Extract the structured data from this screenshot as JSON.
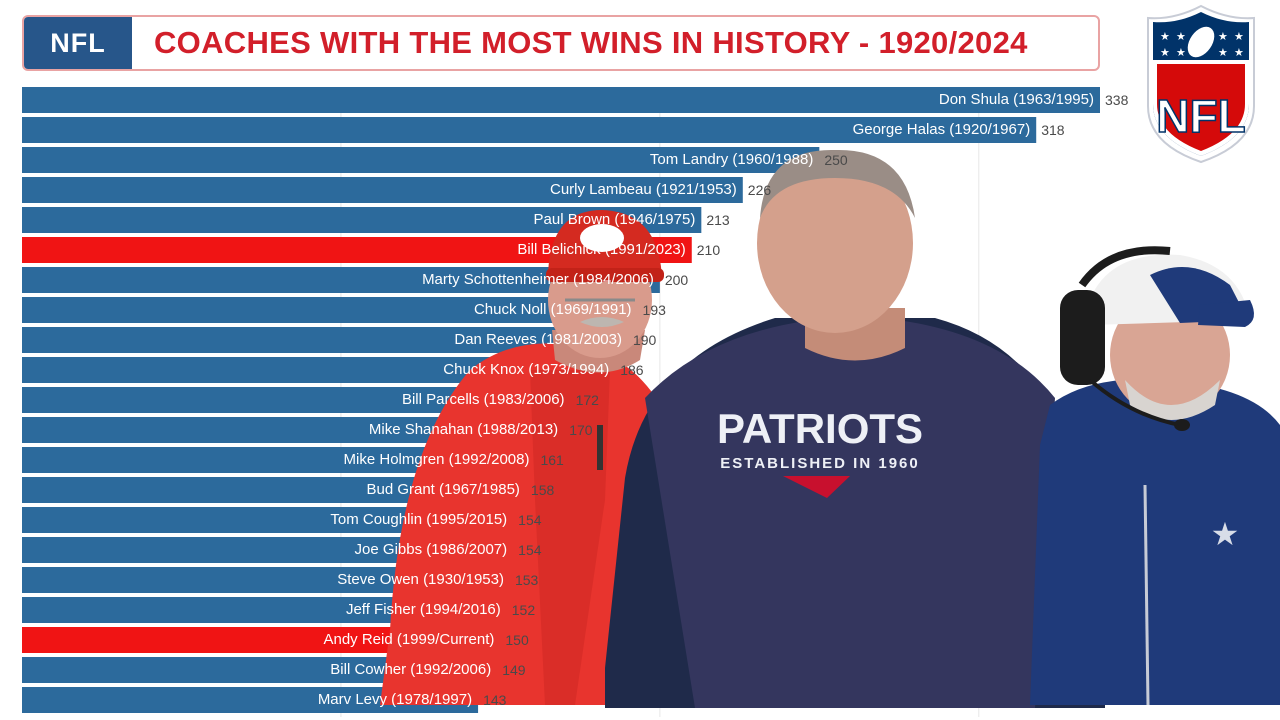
{
  "header": {
    "tag": "NFL",
    "title": "COACHES WITH THE MOST WINS IN HISTORY - 1920/2024"
  },
  "logo": {
    "text": "NFL",
    "icon": "nfl-shield-icon"
  },
  "colors": {
    "bar": "#2c6a9c",
    "highlight": "#f01414",
    "title": "#d21f2a",
    "tag_bg": "#27568a"
  },
  "photos": {
    "left": "chiefs-coach-photo",
    "center": "patriots-coach-photo",
    "right": "cowboys-coach-photo",
    "center_shirt_text": "PATRIOTS",
    "center_shirt_subtext": "ESTABLISHED IN 1960"
  },
  "chart_data": {
    "type": "bar",
    "orientation": "horizontal",
    "title": "COACHES WITH THE MOST WINS IN HISTORY - 1920/2024",
    "xlim": [
      0,
      338
    ],
    "categories": [
      "Don Shula (1963/1995)",
      "George Halas (1920/1967)",
      "Tom Landry (1960/1988)",
      "Curly Lambeau (1921/1953)",
      "Paul Brown (1946/1975)",
      "Bill Belichick (1991/2023)",
      "Marty Schottenheimer (1984/2006)",
      "Chuck Noll (1969/1991)",
      "Dan Reeves (1981/2003)",
      "Chuck Knox (1973/1994)",
      "Bill Parcells (1983/2006)",
      "Mike Shanahan (1988/2013)",
      "Mike Holmgren (1992/2008)",
      "Bud Grant (1967/1985)",
      "Tom Coughlin (1995/2015)",
      "Joe Gibbs (1986/2007)",
      "Steve Owen (1930/1953)",
      "Jeff Fisher (1994/2016)",
      "Andy Reid (1999/Current)",
      "Bill Cowher (1992/2006)",
      "Marv Levy (1978/1997)"
    ],
    "values": [
      338,
      318,
      250,
      226,
      213,
      210,
      200,
      193,
      190,
      186,
      172,
      170,
      161,
      158,
      154,
      154,
      153,
      152,
      150,
      149,
      143
    ],
    "highlighted": [
      "Bill Belichick (1991/2023)",
      "Andy Reid (1999/Current)"
    ]
  }
}
